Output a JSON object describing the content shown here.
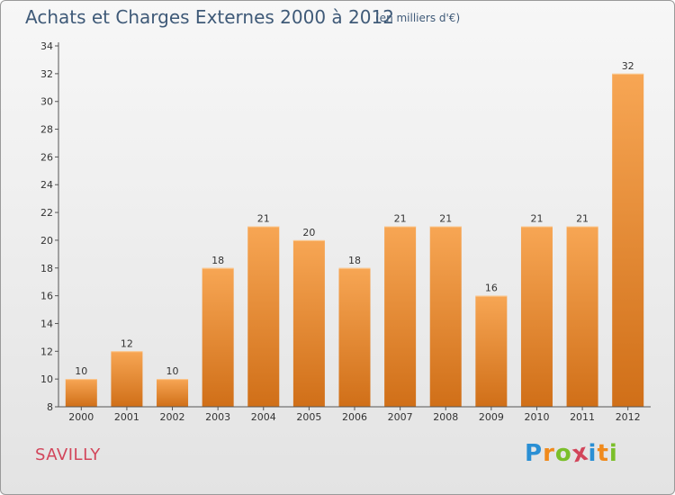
{
  "title": "Achats et Charges Externes 2000 à 2012",
  "unit": "(en milliers d'€)",
  "commune": "SAVILLY",
  "logo": {
    "letters": [
      "P",
      "r",
      "o",
      "x",
      "i",
      "t",
      "i"
    ],
    "colors": [
      "#2a8fd4",
      "#f08a1c",
      "#7bbf2a",
      "#d2455a",
      "#2a8fd4",
      "#f08a1c",
      "#7bbf2a"
    ]
  },
  "colors": {
    "bar_top": "#f7a654",
    "bar_bottom": "#d06f18",
    "axis": "#555555"
  },
  "chart_data": {
    "type": "bar",
    "categories": [
      "2000",
      "2001",
      "2002",
      "2003",
      "2004",
      "2005",
      "2006",
      "2007",
      "2008",
      "2009",
      "2010",
      "2011",
      "2012"
    ],
    "values": [
      10,
      12,
      10,
      18,
      21,
      20,
      18,
      21,
      21,
      16,
      21,
      21,
      32
    ],
    "yticks": [
      8,
      10,
      12,
      14,
      16,
      18,
      20,
      22,
      24,
      26,
      28,
      30,
      32,
      34
    ],
    "ylim": [
      8,
      34
    ],
    "title": "Achats et Charges Externes 2000 à 2012",
    "xlabel": "",
    "ylabel": "",
    "grid": false
  }
}
